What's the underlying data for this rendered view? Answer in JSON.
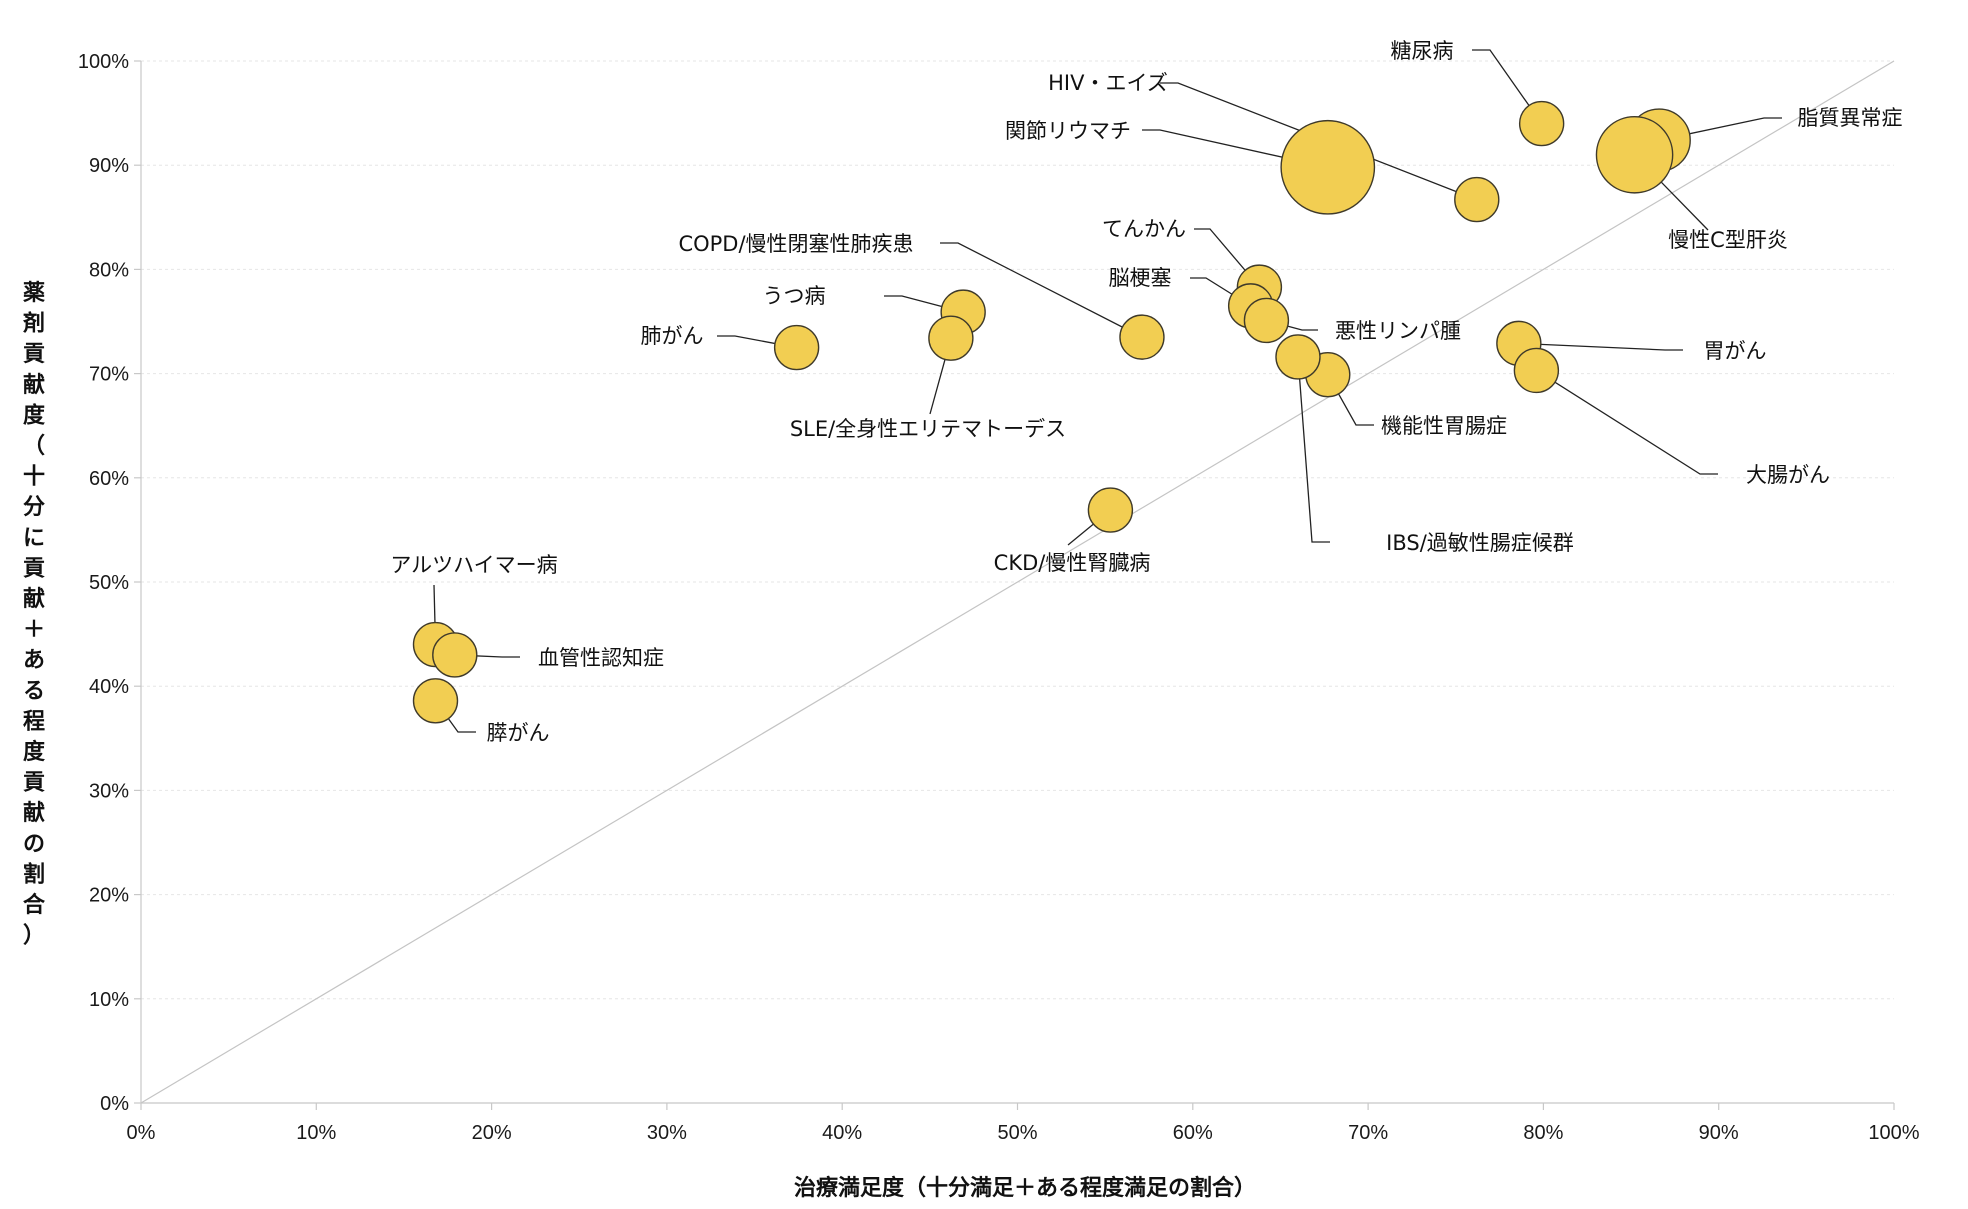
{
  "chart_data": {
    "type": "scatter",
    "subtype": "bubble",
    "title": "",
    "xlabel": "治療満足度（十分満足＋ある程度満足の割合）",
    "ylabel": "薬剤貢献度（十分に貢献＋ある程度貢献の割合）",
    "xlim": [
      0,
      100
    ],
    "ylim": [
      0,
      100
    ],
    "x_ticks": [
      "0%",
      "10%",
      "20%",
      "30%",
      "40%",
      "50%",
      "60%",
      "70%",
      "80%",
      "90%",
      "100%"
    ],
    "y_ticks": [
      "0%",
      "10%",
      "20%",
      "30%",
      "40%",
      "50%",
      "60%",
      "70%",
      "80%",
      "90%",
      "100%"
    ],
    "grid": "horizontal",
    "reference_line": "y = x",
    "bubble_color": "#F2CE52",
    "bubble_edge_color": "#3F3A2A",
    "points": [
      {
        "label": "糖尿病",
        "x": 79.9,
        "y": 94.0,
        "size": 1
      },
      {
        "label": "HIV・エイズ",
        "x": 76.2,
        "y": 86.7,
        "size": 1
      },
      {
        "label": "関節リウマチ",
        "x": 67.7,
        "y": 89.8,
        "size": 4.5
      },
      {
        "label": "脂質異常症",
        "x": 86.6,
        "y": 92.4,
        "size": 2
      },
      {
        "label": "慢性C型肝炎",
        "x": 85.2,
        "y": 91.0,
        "size": 3
      },
      {
        "label": "COPD/慢性閉塞性肺疾患",
        "x": 57.1,
        "y": 73.5,
        "size": 1
      },
      {
        "label": "てんかん",
        "x": 63.8,
        "y": 78.3,
        "size": 1
      },
      {
        "label": "脳梗塞",
        "x": 63.3,
        "y": 76.5,
        "size": 1
      },
      {
        "label": "悪性リンパ腫",
        "x": 64.2,
        "y": 75.1,
        "size": 1
      },
      {
        "label": "うつ病",
        "x": 46.9,
        "y": 75.9,
        "size": 1
      },
      {
        "label": "肺がん",
        "x": 37.4,
        "y": 72.5,
        "size": 1
      },
      {
        "label": "SLE/全身性エリテマトーデス",
        "x": 46.2,
        "y": 73.4,
        "size": 1
      },
      {
        "label": "胃がん",
        "x": 78.6,
        "y": 72.9,
        "size": 1
      },
      {
        "label": "大腸がん",
        "x": 79.6,
        "y": 70.3,
        "size": 1
      },
      {
        "label": "機能性胃腸症",
        "x": 67.7,
        "y": 69.9,
        "size": 1
      },
      {
        "label": "IBS/過敏性腸症候群",
        "x": 66.0,
        "y": 71.6,
        "size": 1
      },
      {
        "label": "CKD/慢性腎臓病",
        "x": 55.3,
        "y": 56.9,
        "size": 1
      },
      {
        "label": "アルツハイマー病",
        "x": 16.8,
        "y": 44.0,
        "size": 1
      },
      {
        "label": "血管性認知症",
        "x": 17.9,
        "y": 43.0,
        "size": 1
      },
      {
        "label": "膵がん",
        "x": 16.8,
        "y": 38.6,
        "size": 1
      }
    ]
  }
}
